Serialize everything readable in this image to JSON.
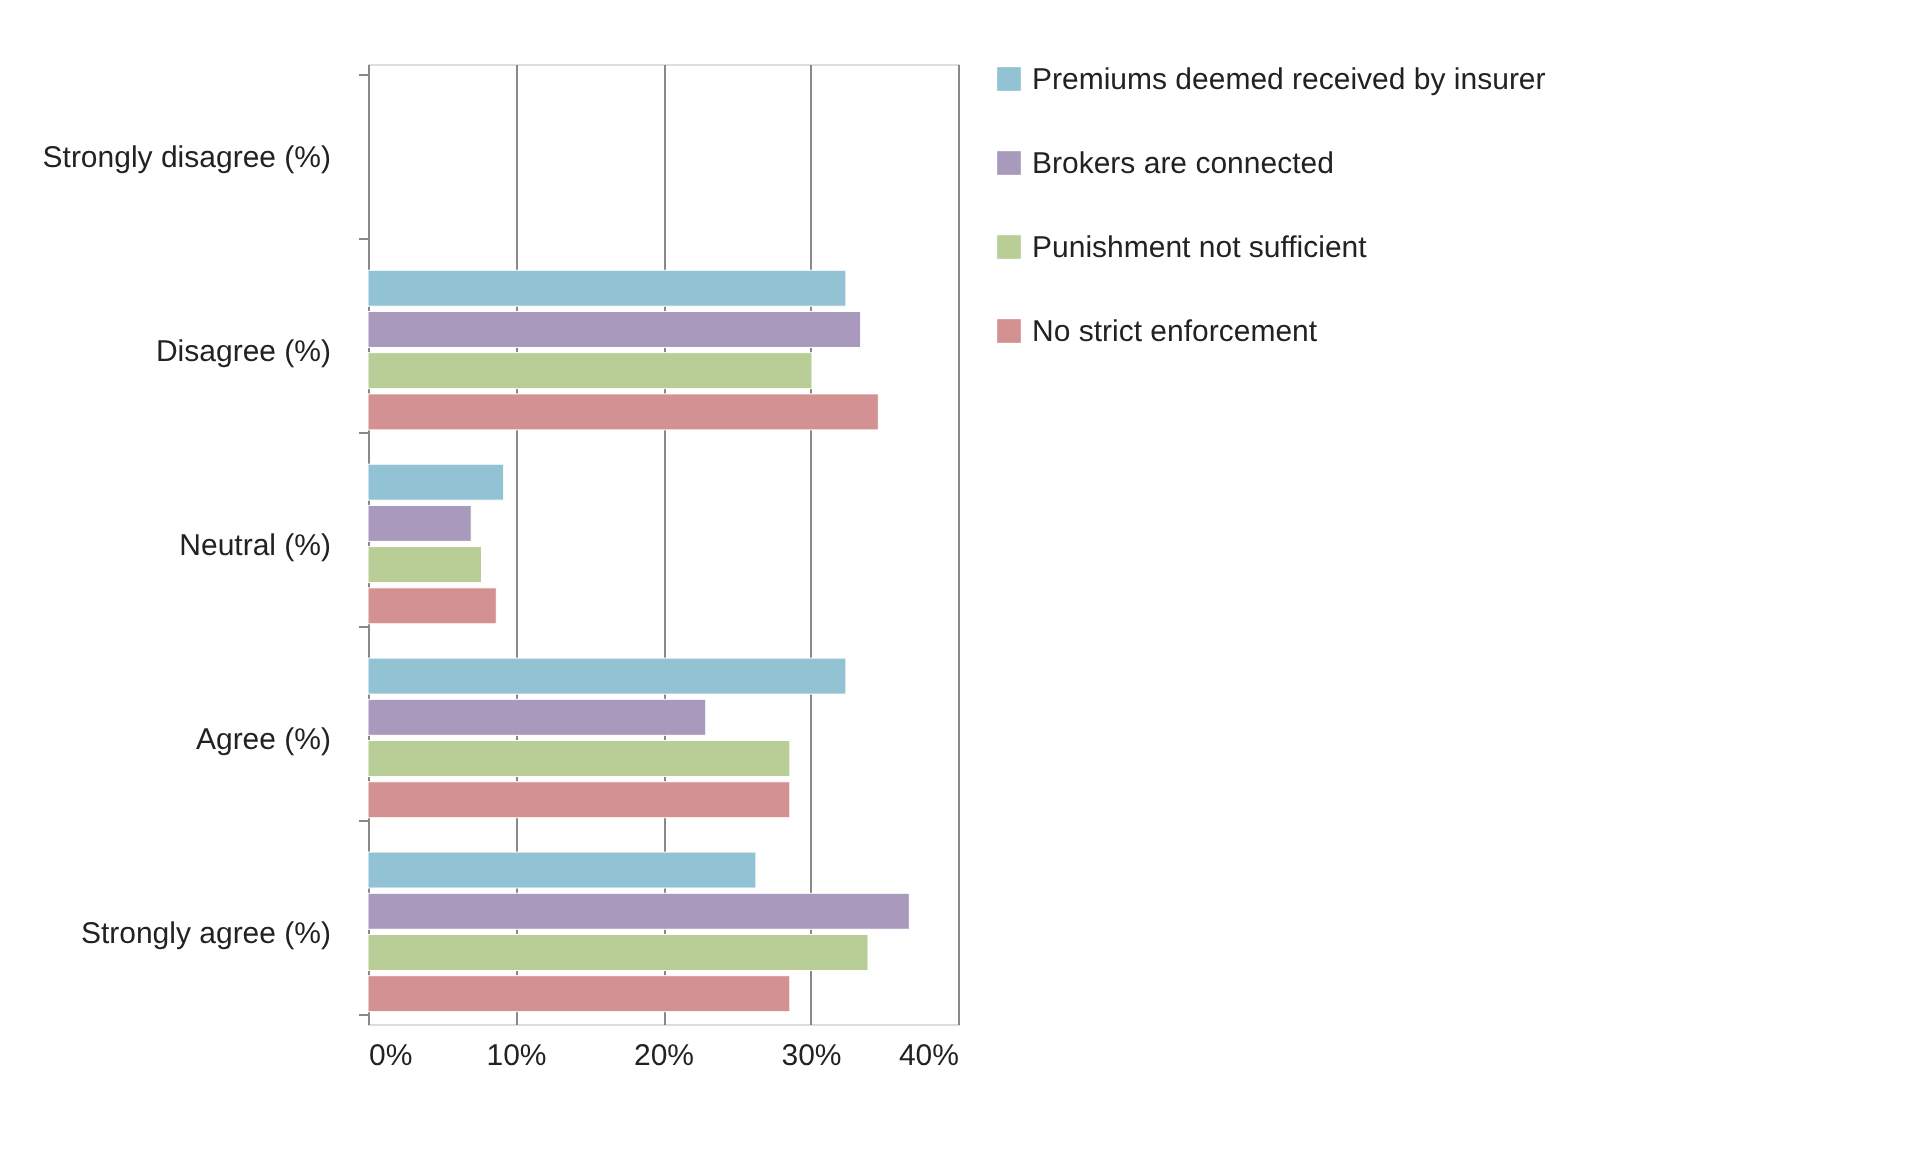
{
  "chart_data": {
    "type": "bar",
    "orientation": "horizontal",
    "categories": [
      "Strongly disagree (%)",
      "Disagree (%)",
      "Neutral (%)",
      "Agree (%)",
      "Strongly agree (%)"
    ],
    "series": [
      {
        "name": "Premiums deemed received by insurer",
        "color": "#92c3d4",
        "values": [
          null,
          32.4,
          9.2,
          32.4,
          26.3
        ]
      },
      {
        "name": "Brokers are connected",
        "color": "#a99abd",
        "values": [
          null,
          33.4,
          7.0,
          22.9,
          36.7
        ]
      },
      {
        "name": "Punishment not sufficient",
        "color": "#b9cd96",
        "values": [
          null,
          30.1,
          7.7,
          28.6,
          33.9
        ]
      },
      {
        "name": "No strict enforcement",
        "color": "#d39191",
        "values": [
          null,
          34.6,
          8.7,
          28.6,
          28.6
        ]
      }
    ],
    "xlim": [
      0,
      40
    ],
    "xticks": [
      {
        "value": 0,
        "label": "0%"
      },
      {
        "value": 10,
        "label": "10%"
      },
      {
        "value": 20,
        "label": "20%"
      },
      {
        "value": 30,
        "label": "30%"
      },
      {
        "value": 40,
        "label": "40%"
      }
    ],
    "grid": "x",
    "legend": "right"
  }
}
